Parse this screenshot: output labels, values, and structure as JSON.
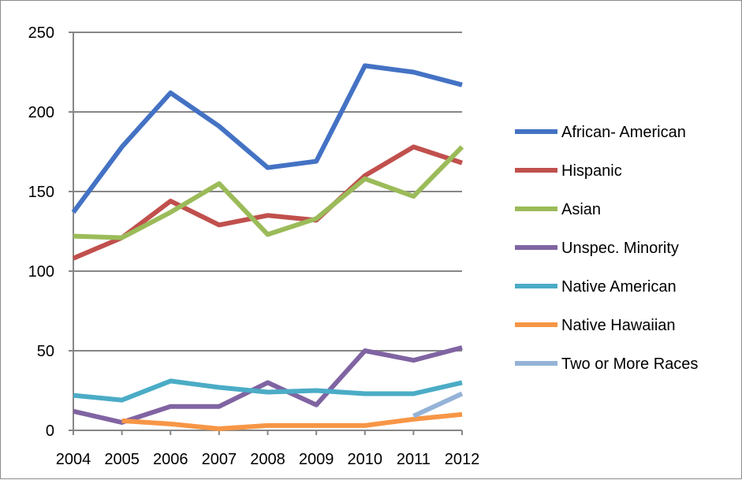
{
  "chart_data": {
    "type": "line",
    "title": "",
    "xlabel": "",
    "ylabel": "",
    "x": [
      "2004",
      "2005",
      "2006",
      "2007",
      "2008",
      "2009",
      "2010",
      "2011",
      "2012"
    ],
    "ylim": [
      0,
      250
    ],
    "yticks": [
      "0",
      "50",
      "100",
      "150",
      "200",
      "250"
    ],
    "grid": "horizontal",
    "legend_position": "right",
    "series": [
      {
        "name": "African- American",
        "color": "#4472C4",
        "values": [
          137,
          178,
          212,
          191,
          165,
          169,
          229,
          225,
          217
        ]
      },
      {
        "name": "Hispanic",
        "color": "#C0504D",
        "values": [
          108,
          121,
          144,
          129,
          135,
          132,
          160,
          178,
          168
        ]
      },
      {
        "name": "Asian",
        "color": "#9BBB59",
        "values": [
          122,
          121,
          137,
          155,
          123,
          133,
          158,
          147,
          178
        ]
      },
      {
        "name": "Unspec. Minority",
        "color": "#8064A2",
        "values": [
          12,
          5,
          15,
          15,
          30,
          16,
          50,
          44,
          52
        ]
      },
      {
        "name": "Native American",
        "color": "#4BACC6",
        "values": [
          22,
          19,
          31,
          27,
          24,
          25,
          23,
          23,
          30
        ]
      },
      {
        "name": "Native Hawaiian",
        "color": "#F79646",
        "values": [
          null,
          6,
          4,
          1,
          3,
          3,
          3,
          7,
          10
        ]
      },
      {
        "name": "Two or More Races",
        "color": "#95B3D7",
        "values": [
          null,
          null,
          null,
          null,
          null,
          null,
          null,
          9,
          23
        ]
      }
    ]
  }
}
